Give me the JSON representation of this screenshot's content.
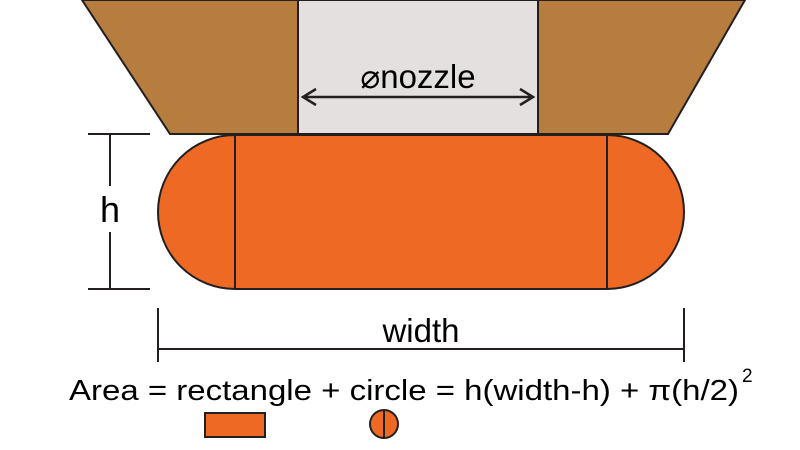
{
  "labels": {
    "nozzle": "⌀nozzle",
    "height": "h",
    "width": "width",
    "formula": "Area = rectangle + circle = h(width-h) + π(h/2)",
    "exponent": "2"
  },
  "colors": {
    "nozzle_body": "#b67d3e",
    "nozzle_bore": "#e4e0df",
    "bead": "#ee6a24",
    "stroke": "#231f20"
  }
}
